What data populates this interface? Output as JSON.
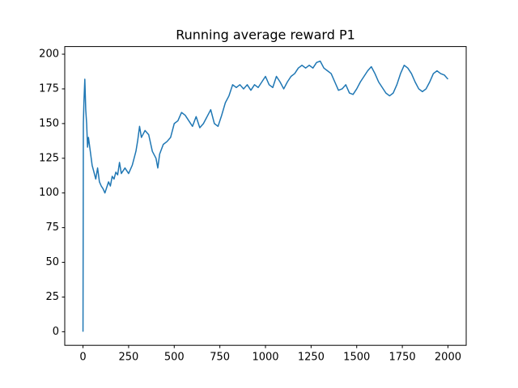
{
  "chart_data": {
    "type": "line",
    "title": "Running average reward P1",
    "color": "#1f77b4",
    "x": [
      0,
      2,
      5,
      10,
      15,
      20,
      25,
      30,
      40,
      50,
      60,
      70,
      80,
      90,
      100,
      110,
      120,
      130,
      140,
      150,
      160,
      170,
      180,
      190,
      200,
      210,
      230,
      250,
      270,
      290,
      300,
      310,
      320,
      340,
      360,
      380,
      400,
      410,
      420,
      440,
      460,
      480,
      500,
      520,
      540,
      560,
      580,
      600,
      620,
      640,
      660,
      680,
      700,
      720,
      740,
      760,
      780,
      800,
      820,
      840,
      860,
      880,
      900,
      920,
      940,
      960,
      980,
      1000,
      1020,
      1040,
      1060,
      1080,
      1100,
      1120,
      1140,
      1160,
      1180,
      1200,
      1220,
      1240,
      1260,
      1280,
      1300,
      1320,
      1340,
      1360,
      1380,
      1400,
      1420,
      1440,
      1460,
      1480,
      1500,
      1520,
      1540,
      1560,
      1580,
      1600,
      1620,
      1640,
      1660,
      1680,
      1700,
      1720,
      1740,
      1760,
      1780,
      1800,
      1820,
      1840,
      1860,
      1880,
      1900,
      1920,
      1940,
      1960,
      1980,
      2000
    ],
    "values": [
      0,
      150,
      165,
      182,
      160,
      150,
      133,
      140,
      130,
      120,
      115,
      110,
      118,
      108,
      105,
      103,
      100,
      104,
      108,
      105,
      112,
      110,
      115,
      113,
      122,
      114,
      118,
      114,
      120,
      130,
      138,
      148,
      140,
      145,
      142,
      130,
      125,
      118,
      128,
      135,
      137,
      140,
      150,
      152,
      158,
      156,
      152,
      148,
      155,
      147,
      150,
      155,
      160,
      150,
      148,
      156,
      165,
      170,
      178,
      176,
      178,
      175,
      178,
      174,
      178,
      176,
      180,
      184,
      178,
      176,
      184,
      180,
      175,
      180,
      184,
      186,
      190,
      192,
      190,
      192,
      190,
      194,
      195,
      190,
      188,
      186,
      180,
      174,
      175,
      178,
      172,
      171,
      175,
      180,
      184,
      188,
      191,
      186,
      180,
      176,
      172,
      170,
      172,
      178,
      186,
      192,
      190,
      186,
      180,
      175,
      173,
      175,
      180,
      186,
      188,
      186,
      185,
      182
    ],
    "xlim": [
      -100,
      2100
    ],
    "ylim": [
      -9.8,
      205.5
    ],
    "xticks": [
      0,
      250,
      500,
      750,
      1000,
      1250,
      1500,
      1750,
      2000
    ],
    "yticks": [
      0,
      25,
      50,
      75,
      100,
      125,
      150,
      175,
      200
    ]
  }
}
